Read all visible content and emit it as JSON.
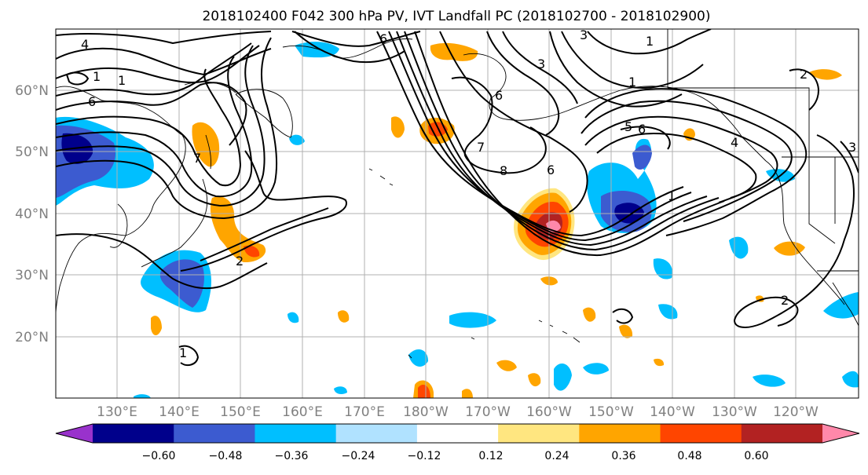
{
  "title": "2018102400 F042 300 hPa PV, IVT Landfall PC (2018102700 - 2018102900)",
  "lat_labels": [
    "60°N",
    "50°N",
    "40°N",
    "30°N",
    "20°N"
  ],
  "lon_labels": [
    "130°E",
    "140°E",
    "150°E",
    "160°E",
    "170°E",
    "180°W",
    "170°W",
    "160°W",
    "150°W",
    "140°W",
    "130°W",
    "120°W"
  ],
  "contour_labels": [
    "4",
    "1",
    "6",
    "6",
    "3",
    "1",
    "3",
    "6",
    "7",
    "8",
    "6",
    "1",
    "4",
    "1",
    "3",
    "2",
    "6",
    "5",
    "1",
    "2",
    "7",
    "1",
    "2"
  ],
  "colorbar": {
    "ticks": [
      "−0.60",
      "−0.48",
      "−0.36",
      "−0.24",
      "−0.12",
      "0.12",
      "0.24",
      "0.36",
      "0.48",
      "0.60"
    ],
    "colors": [
      "#9932cc",
      "#00008b",
      "#3c5bd0",
      "#00bfff",
      "#b0e2ff",
      "#ffffff",
      "#ffe680",
      "#ffa500",
      "#ff4500",
      "#b22222",
      "#ff88aa"
    ]
  },
  "colors": {
    "pv_contour": "#000000",
    "coastline": "#000000",
    "grid": "#b0b0b0",
    "tick_label": "#808080"
  }
}
